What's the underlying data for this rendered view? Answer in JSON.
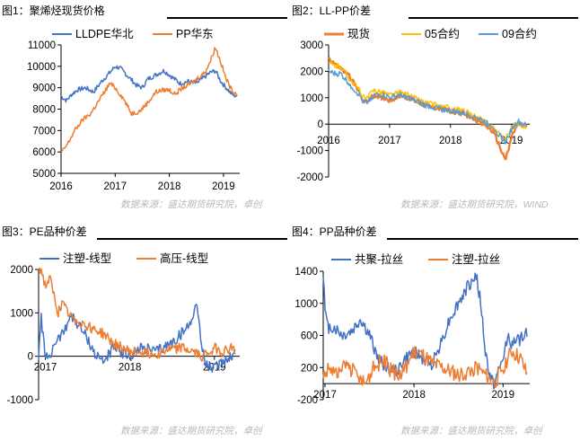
{
  "panels": [
    {
      "title": "图1：聚烯烃现货价格",
      "source": "数据来源：盛达期货研究院，卓创"
    },
    {
      "title": "图2：LL-PP价差",
      "source": "数据来源：盛达期货研究院，WIND"
    },
    {
      "title": "图3：PE品种价差",
      "source": "数据来源：盛达期货研究院，卓创"
    },
    {
      "title": "图4：PP品种价差",
      "source": "数据来源：盛达期货研究院，卓创"
    }
  ],
  "chart_data": [
    {
      "type": "line",
      "title": "图1：聚烯烃现货价格",
      "ylim": [
        5000,
        11000
      ],
      "yticks": [
        5000,
        6000,
        7000,
        8000,
        9000,
        10000,
        11000
      ],
      "xlim": [
        2016.0,
        2019.3
      ],
      "xticks": [
        {
          "pos": 2016,
          "label": "2016"
        },
        {
          "pos": 2017,
          "label": "2017"
        },
        {
          "pos": 2018,
          "label": "2018"
        },
        {
          "pos": 2019,
          "label": "2019"
        }
      ],
      "grid": false,
      "legend": "top",
      "series": [
        {
          "name": "LLDPE华北",
          "color": "#4472c4",
          "noise": 110,
          "x": [
            2016.0,
            2016.1,
            2016.2,
            2016.3,
            2016.45,
            2016.6,
            2016.75,
            2016.9,
            2017.0,
            2017.1,
            2017.25,
            2017.4,
            2017.5,
            2017.6,
            2017.75,
            2017.9,
            2018.0,
            2018.1,
            2018.2,
            2018.35,
            2018.5,
            2018.6,
            2018.75,
            2018.85,
            2018.95,
            2019.05,
            2019.15,
            2019.25
          ],
          "y": [
            8600,
            8400,
            8700,
            8900,
            9000,
            8800,
            9300,
            9700,
            10000,
            9900,
            9500,
            9100,
            9000,
            9400,
            9600,
            9800,
            9600,
            9400,
            9200,
            9300,
            9200,
            9400,
            9700,
            9800,
            9300,
            9000,
            8700,
            8600
          ]
        },
        {
          "name": "PP华东",
          "color": "#ed7d31",
          "noise": 110,
          "x": [
            2016.0,
            2016.05,
            2016.15,
            2016.25,
            2016.4,
            2016.55,
            2016.65,
            2016.8,
            2016.9,
            2017.0,
            2017.15,
            2017.3,
            2017.45,
            2017.6,
            2017.75,
            2017.9,
            2018.0,
            2018.1,
            2018.25,
            2018.4,
            2018.55,
            2018.65,
            2018.75,
            2018.85,
            2018.95,
            2019.05,
            2019.15,
            2019.25
          ],
          "y": [
            6000,
            6100,
            6500,
            7000,
            7500,
            7800,
            8200,
            8800,
            9200,
            9000,
            8500,
            7800,
            7900,
            8300,
            8800,
            8900,
            8900,
            8700,
            9000,
            9200,
            9500,
            9700,
            10200,
            10900,
            10200,
            9400,
            8900,
            8700
          ]
        }
      ]
    },
    {
      "type": "line",
      "title": "图2：LL-PP价差",
      "ylim": [
        -2000,
        3000
      ],
      "yticks": [
        -2000,
        -1000,
        0,
        1000,
        2000,
        3000
      ],
      "xlim": [
        2016.0,
        2019.3
      ],
      "xticks": [
        {
          "pos": 2016,
          "label": "2016"
        },
        {
          "pos": 2017,
          "label": "2017"
        },
        {
          "pos": 2018,
          "label": "2018"
        },
        {
          "pos": 2019,
          "label": "2019"
        }
      ],
      "grid": false,
      "legend": "top",
      "series": [
        {
          "name": "现货",
          "color": "#ed7d31",
          "width": 2.4,
          "noise": 90,
          "x": [
            2016.0,
            2016.1,
            2016.2,
            2016.35,
            2016.5,
            2016.6,
            2016.75,
            2016.9,
            2017.0,
            2017.2,
            2017.4,
            2017.6,
            2017.8,
            2018.0,
            2018.2,
            2018.4,
            2018.55,
            2018.7,
            2018.8,
            2018.85,
            2018.9,
            2018.95,
            2019.0,
            2019.1,
            2019.2,
            2019.25
          ],
          "y": [
            2500,
            2300,
            2100,
            1800,
            1200,
            800,
            1100,
            1000,
            900,
            1100,
            900,
            700,
            600,
            500,
            400,
            200,
            0,
            -300,
            -800,
            -1100,
            -1300,
            -1000,
            -500,
            0,
            -100,
            -50
          ]
        },
        {
          "name": "05合约",
          "color": "#ffc000",
          "noise": 110,
          "x": [
            2016.0,
            2016.1,
            2016.2,
            2016.35,
            2016.5,
            2016.6,
            2016.75,
            2016.9,
            2017.0,
            2017.2,
            2017.4,
            2017.6,
            2017.8,
            2018.0,
            2018.2,
            2018.4,
            2018.55,
            2018.7,
            2018.8,
            2018.9,
            2019.0,
            2019.1,
            2019.2,
            2019.25
          ],
          "y": [
            2300,
            2200,
            2200,
            1700,
            1300,
            900,
            1300,
            1200,
            1100,
            1200,
            1000,
            800,
            700,
            600,
            500,
            300,
            100,
            -100,
            -400,
            -600,
            -100,
            0,
            -50,
            -100
          ]
        },
        {
          "name": "09合约",
          "color": "#5b9bd5",
          "noise": 110,
          "x": [
            2016.0,
            2016.1,
            2016.2,
            2016.35,
            2016.5,
            2016.6,
            2016.75,
            2016.9,
            2017.0,
            2017.2,
            2017.4,
            2017.6,
            2017.8,
            2018.0,
            2018.2,
            2018.4,
            2018.55,
            2018.7,
            2018.8,
            2018.9,
            2019.0,
            2019.1,
            2019.2,
            2019.25
          ],
          "y": [
            2000,
            1900,
            1900,
            1500,
            1100,
            800,
            1100,
            1100,
            1000,
            1100,
            900,
            700,
            600,
            500,
            400,
            300,
            100,
            -100,
            -400,
            -700,
            -200,
            100,
            0,
            -100
          ]
        }
      ]
    },
    {
      "type": "line",
      "title": "图3：PE品种价差",
      "ylim": [
        -1000,
        2000
      ],
      "yticks": [
        -1000,
        0,
        1000,
        2000
      ],
      "xlim": [
        2016.92,
        2019.3
      ],
      "xticks": [
        {
          "pos": 2017,
          "label": "2017"
        },
        {
          "pos": 2018,
          "label": "2018"
        },
        {
          "pos": 2019,
          "label": "2019"
        }
      ],
      "grid": false,
      "legend": "top",
      "series": [
        {
          "name": "注塑-线型",
          "color": "#4472c4",
          "noise": 130,
          "x": [
            2016.92,
            2016.95,
            2017.0,
            2017.05,
            2017.1,
            2017.2,
            2017.3,
            2017.4,
            2017.5,
            2017.6,
            2017.7,
            2017.8,
            2017.9,
            2018.0,
            2018.15,
            2018.3,
            2018.4,
            2018.5,
            2018.6,
            2018.7,
            2018.75,
            2018.8,
            2018.85,
            2018.9,
            2019.0,
            2019.1,
            2019.2,
            2019.25
          ],
          "y": [
            0,
            900,
            0,
            -100,
            300,
            500,
            950,
            700,
            400,
            0,
            -100,
            200,
            100,
            0,
            200,
            100,
            200,
            300,
            500,
            700,
            1000,
            1200,
            200,
            -200,
            -300,
            -100,
            0,
            100
          ]
        },
        {
          "name": "高压-线型",
          "color": "#ed7d31",
          "noise": 120,
          "x": [
            2016.92,
            2016.95,
            2017.0,
            2017.05,
            2017.1,
            2017.15,
            2017.2,
            2017.3,
            2017.4,
            2017.5,
            2017.6,
            2017.7,
            2017.8,
            2017.9,
            2018.0,
            2018.15,
            2018.3,
            2018.45,
            2018.6,
            2018.75,
            2018.85,
            2018.9,
            2019.0,
            2019.1,
            2019.2,
            2019.25
          ],
          "y": [
            2000,
            2000,
            1600,
            1800,
            1400,
            1000,
            1200,
            900,
            800,
            700,
            600,
            500,
            300,
            200,
            100,
            100,
            50,
            150,
            200,
            100,
            0,
            50,
            200,
            100,
            200,
            100
          ]
        }
      ]
    },
    {
      "type": "line",
      "title": "图4：PP品种价差",
      "ylim": [
        -200,
        1400
      ],
      "yticks": [
        -200,
        200,
        600,
        1000,
        1400
      ],
      "xlim": [
        2016.98,
        2019.3
      ],
      "xticks": [
        {
          "pos": 2017,
          "label": "2017"
        },
        {
          "pos": 2018,
          "label": "2018"
        },
        {
          "pos": 2019,
          "label": "2019"
        }
      ],
      "grid": false,
      "legend": "top",
      "series": [
        {
          "name": "共聚-拉丝",
          "color": "#4472c4",
          "noise": 80,
          "x": [
            2016.98,
            2017.0,
            2017.03,
            2017.1,
            2017.2,
            2017.3,
            2017.4,
            2017.5,
            2017.6,
            2017.7,
            2017.8,
            2017.9,
            2018.0,
            2018.1,
            2018.2,
            2018.3,
            2018.4,
            2018.5,
            2018.6,
            2018.7,
            2018.75,
            2018.8,
            2018.85,
            2018.9,
            2019.0,
            2019.05,
            2019.1,
            2019.2,
            2019.27
          ],
          "y": [
            1400,
            900,
            700,
            700,
            600,
            650,
            800,
            600,
            300,
            200,
            150,
            300,
            400,
            300,
            250,
            500,
            800,
            1000,
            1200,
            1350,
            1000,
            400,
            100,
            0,
            300,
            600,
            500,
            550,
            650
          ]
        },
        {
          "name": "注塑-拉丝",
          "color": "#ed7d31",
          "noise": 100,
          "x": [
            2016.98,
            2017.05,
            2017.15,
            2017.25,
            2017.35,
            2017.45,
            2017.55,
            2017.65,
            2017.75,
            2017.85,
            2017.95,
            2018.0,
            2018.1,
            2018.2,
            2018.3,
            2018.4,
            2018.5,
            2018.6,
            2018.7,
            2018.8,
            2018.9,
            2019.0,
            2019.1,
            2019.2,
            2019.27
          ],
          "y": [
            100,
            200,
            100,
            250,
            100,
            0,
            200,
            300,
            150,
            100,
            300,
            400,
            350,
            250,
            200,
            150,
            100,
            150,
            200,
            100,
            0,
            200,
            400,
            300,
            100
          ]
        }
      ]
    }
  ]
}
